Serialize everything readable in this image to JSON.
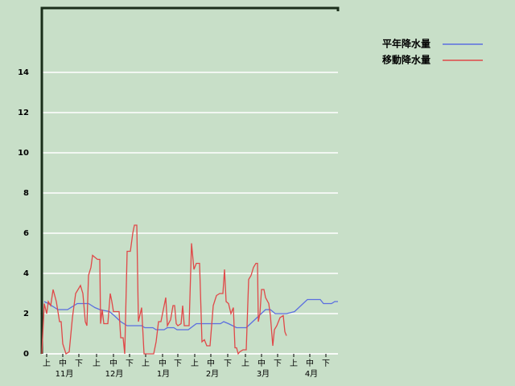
{
  "chart_data": {
    "type": "line",
    "xlim": [
      0,
      184
    ],
    "ylim": [
      0,
      17.2
    ],
    "yticks": [
      0,
      2,
      4,
      6,
      8,
      10,
      12,
      14
    ],
    "grid": true,
    "legend": "top-right",
    "xticks": [
      {
        "value": 3,
        "label": "上"
      },
      {
        "value": 13,
        "label": "中"
      },
      {
        "value": 23,
        "label": "下"
      },
      {
        "value": 34,
        "label": "上"
      },
      {
        "value": 44.5,
        "label": "中"
      },
      {
        "value": 54.5,
        "label": "下"
      },
      {
        "value": 64.5,
        "label": "上"
      },
      {
        "value": 75,
        "label": "中"
      },
      {
        "value": 84.5,
        "label": "下"
      },
      {
        "value": 95,
        "label": "上"
      },
      {
        "value": 105,
        "label": "中"
      },
      {
        "value": 115.5,
        "label": "下"
      },
      {
        "value": 126.5,
        "label": "上"
      },
      {
        "value": 136.5,
        "label": "中"
      },
      {
        "value": 146.5,
        "label": "下"
      },
      {
        "value": 156.5,
        "label": "上"
      },
      {
        "value": 166.5,
        "label": "中"
      },
      {
        "value": 176.5,
        "label": "下"
      }
    ],
    "month_labels": [
      {
        "value": 14,
        "label": "11月"
      },
      {
        "value": 45,
        "label": "12月"
      },
      {
        "value": 75.5,
        "label": "1月"
      },
      {
        "value": 106,
        "label": "2月"
      },
      {
        "value": 137.5,
        "label": "3月"
      },
      {
        "value": 167.5,
        "label": "4月"
      }
    ],
    "series": [
      {
        "name": "平年降水量",
        "color": "#5a6ee0",
        "x": [
          1.5,
          4,
          8,
          10,
          16,
          20,
          22,
          29,
          33,
          36,
          42,
          45,
          49,
          53,
          62,
          64,
          69,
          71,
          76,
          78,
          82,
          84,
          91,
          96,
          111,
          113,
          116,
          121,
          127,
          131,
          135,
          139,
          142,
          145,
          152,
          157,
          161,
          165,
          173,
          175,
          180,
          182,
          184
        ],
        "values": [
          2.6,
          2.5,
          2.3,
          2.2,
          2.2,
          2.4,
          2.5,
          2.5,
          2.3,
          2.2,
          2.1,
          1.9,
          1.6,
          1.4,
          1.4,
          1.3,
          1.3,
          1.2,
          1.2,
          1.3,
          1.3,
          1.2,
          1.2,
          1.5,
          1.5,
          1.6,
          1.5,
          1.3,
          1.3,
          1.6,
          1.9,
          2.2,
          2.2,
          2.0,
          2.0,
          2.1,
          2.4,
          2.7,
          2.7,
          2.5,
          2.5,
          2.6,
          2.6
        ]
      },
      {
        "name": "移動降水量",
        "color": "#e04848",
        "x": [
          0,
          1.5,
          3,
          4,
          5.5,
          7,
          9,
          11,
          12,
          13,
          15,
          17,
          19,
          21,
          24,
          25.5,
          27,
          28,
          29,
          30.5,
          31.5,
          33,
          34.5,
          36,
          36.5,
          37.5,
          38.5,
          41,
          42.5,
          43.5,
          44.5,
          48,
          49,
          50.5,
          51.5,
          53,
          55,
          56.5,
          57.5,
          59,
          60,
          62,
          63.5,
          66.5,
          69.5,
          71,
          72.5,
          74,
          75.5,
          77,
          78,
          80,
          81.5,
          82.5,
          83.5,
          84.5,
          86.5,
          87.5,
          88.5,
          91.5,
          93,
          94.5,
          96,
          98,
          99.5,
          101,
          102.5,
          104.5,
          106.5,
          108.5,
          110.5,
          112.5,
          113.5,
          114.5,
          116,
          117.5,
          119,
          120,
          121,
          122,
          123,
          125,
          127,
          128.5,
          130,
          131.5,
          133,
          134,
          134.5,
          135.5,
          136.5,
          138,
          139,
          141,
          142,
          143.5,
          144.5,
          146,
          148,
          150,
          151,
          152
        ],
        "values": [
          0,
          2.5,
          2.0,
          2.6,
          2.4,
          3.2,
          2.6,
          1.6,
          1.6,
          0.5,
          0,
          0.1,
          1.8,
          3.0,
          3.4,
          3.0,
          1.6,
          1.4,
          3.9,
          4.3,
          4.9,
          4.8,
          4.7,
          4.7,
          1.5,
          2.2,
          1.5,
          1.5,
          3.0,
          2.6,
          2.1,
          2.1,
          0.8,
          0.8,
          0,
          5.1,
          5.1,
          6.0,
          6.4,
          6.4,
          1.6,
          2.3,
          0,
          0,
          0,
          0.6,
          1.6,
          1.6,
          2.2,
          2.8,
          1.4,
          1.7,
          2.4,
          2.4,
          1.5,
          1.4,
          1.5,
          2.4,
          1.4,
          1.4,
          5.5,
          4.2,
          4.5,
          4.5,
          0.6,
          0.7,
          0.4,
          0.4,
          2.4,
          2.9,
          3.0,
          3.0,
          4.2,
          2.6,
          2.5,
          2.0,
          2.3,
          0.3,
          0.3,
          0,
          0.1,
          0.2,
          0.2,
          3.7,
          3.9,
          4.3,
          4.5,
          4.5,
          1.6,
          2.0,
          3.2,
          3.2,
          2.8,
          2.5,
          1.9,
          0.4,
          1.2,
          1.4,
          1.8,
          1.9,
          1.1,
          0.9
        ]
      }
    ]
  }
}
